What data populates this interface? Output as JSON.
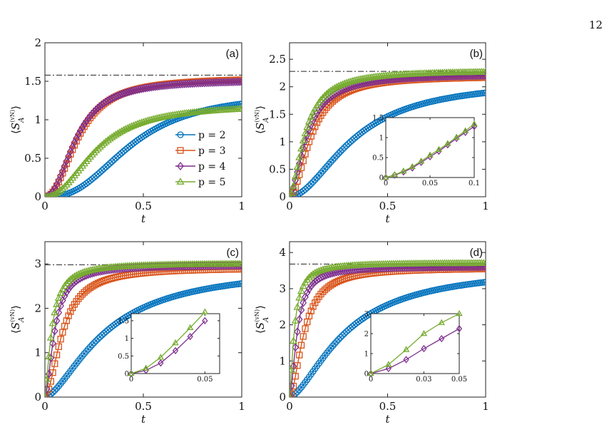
{
  "page": {
    "number": "12"
  },
  "colors": {
    "p2": "#0072BD",
    "p3": "#D95319",
    "p4": "#7E2F8E",
    "p5": "#77AC30",
    "plateau": "#222222"
  },
  "legend": {
    "placement": "right-inside-panel-a",
    "entries": [
      {
        "label": "p = 2",
        "marker": "circle",
        "color": "#0072BD"
      },
      {
        "label": "p = 3",
        "marker": "square",
        "color": "#D95319"
      },
      {
        "label": "p = 4",
        "marker": "diamond",
        "color": "#7E2F8E"
      },
      {
        "label": "p = 5",
        "marker": "triangle",
        "color": "#77AC30"
      }
    ]
  },
  "chart_data": [
    {
      "type": "line",
      "panel": "(a)",
      "xlabel": "t",
      "ylabel": "⟨S_A^(vN)⟩",
      "xlim": [
        0,
        1
      ],
      "ylim": [
        0,
        2
      ],
      "xticks": [
        "0",
        "0.5",
        "1"
      ],
      "yticks": [
        "0",
        "0.5",
        "1",
        "1.5",
        "2"
      ],
      "plateau": 1.58,
      "series": [
        {
          "name": "p = 2",
          "saturation": 1.35,
          "halftime": 0.44,
          "shape": 2.6
        },
        {
          "name": "p = 3",
          "saturation": 1.55,
          "halftime": 0.17,
          "shape": 2.2
        },
        {
          "name": "p = 4",
          "saturation": 1.52,
          "halftime": 0.16,
          "shape": 2.2
        },
        {
          "name": "p = 5",
          "saturation": 1.2,
          "halftime": 0.26,
          "shape": 2.2
        }
      ]
    },
    {
      "type": "line",
      "panel": "(b)",
      "xlabel": "t",
      "ylabel": "⟨S_A^(vN)⟩",
      "xlim": [
        0,
        1
      ],
      "ylim": [
        0,
        2.8
      ],
      "xticks": [
        "0",
        "0.5",
        "1"
      ],
      "yticks": [
        "0",
        "0.5",
        "1",
        "1.5",
        "2",
        "2.5"
      ],
      "plateau": 2.28,
      "series": [
        {
          "name": "p = 2",
          "saturation": 2.12,
          "halftime": 0.33,
          "shape": 1.9
        },
        {
          "name": "p = 3",
          "saturation": 2.2,
          "halftime": 0.11,
          "shape": 1.9
        },
        {
          "name": "p = 4",
          "saturation": 2.24,
          "halftime": 0.09,
          "shape": 1.7
        },
        {
          "name": "p = 5",
          "saturation": 2.3,
          "halftime": 0.08,
          "shape": 1.7
        }
      ],
      "inset": {
        "xlim": [
          0,
          0.1
        ],
        "ylim": [
          0,
          1.5
        ],
        "xticks": [
          "0",
          "0.05",
          "0.1"
        ],
        "yticks": [
          "0",
          "0.5",
          "1",
          "1.5"
        ],
        "series": [
          {
            "name": "p = 4",
            "x": [
              0,
              0.01,
              0.02,
              0.03,
              0.04,
              0.05,
              0.06,
              0.07,
              0.08,
              0.09,
              0.1
            ],
            "y": [
              0,
              0.06,
              0.14,
              0.24,
              0.38,
              0.52,
              0.66,
              0.82,
              0.98,
              1.13,
              1.28
            ]
          },
          {
            "name": "p = 5",
            "x": [
              0,
              0.01,
              0.02,
              0.03,
              0.04,
              0.05,
              0.06,
              0.07,
              0.08,
              0.09,
              0.1
            ],
            "y": [
              0,
              0.07,
              0.16,
              0.27,
              0.41,
              0.56,
              0.7,
              0.85,
              1.01,
              1.17,
              1.34
            ]
          }
        ]
      }
    },
    {
      "type": "line",
      "panel": "(c)",
      "xlabel": "t",
      "ylabel": "⟨S_A^(vN)⟩",
      "xlim": [
        0,
        1
      ],
      "ylim": [
        0,
        3.5
      ],
      "xticks": [
        "0",
        "0.5",
        "1"
      ],
      "yticks": [
        "0",
        "1",
        "2",
        "3"
      ],
      "plateau": 2.98,
      "series": [
        {
          "name": "p = 2",
          "saturation": 2.95,
          "halftime": 0.31,
          "shape": 1.6
        },
        {
          "name": "p = 3",
          "saturation": 2.92,
          "halftime": 0.09,
          "shape": 1.8
        },
        {
          "name": "p = 4",
          "saturation": 2.98,
          "halftime": 0.05,
          "shape": 1.7
        },
        {
          "name": "p = 5",
          "saturation": 3.02,
          "halftime": 0.035,
          "shape": 1.5
        }
      ],
      "inset": {
        "xlim": [
          0,
          0.06
        ],
        "ylim": [
          0,
          1.7
        ],
        "xticks": [
          "0",
          "0.05"
        ],
        "yticks": [
          "0",
          "0.5",
          "1",
          "1.5"
        ],
        "series": [
          {
            "name": "p = 4",
            "x": [
              0,
              0.01,
              0.02,
              0.03,
              0.04,
              0.05
            ],
            "y": [
              0,
              0.09,
              0.3,
              0.65,
              1.05,
              1.5
            ]
          },
          {
            "name": "p = 5",
            "x": [
              0,
              0.01,
              0.02,
              0.03,
              0.04,
              0.05
            ],
            "y": [
              0,
              0.15,
              0.46,
              0.87,
              1.3,
              1.75
            ]
          }
        ]
      }
    },
    {
      "type": "line",
      "panel": "(d)",
      "xlabel": "t",
      "ylabel": "⟨S_A^(vN)⟩",
      "xlim": [
        0,
        1
      ],
      "ylim": [
        0,
        4.3
      ],
      "xticks": [
        "0",
        "0.5",
        "1"
      ],
      "yticks": [
        "0",
        "1",
        "2",
        "3",
        "4"
      ],
      "plateau": 3.68,
      "series": [
        {
          "name": "p = 2",
          "saturation": 3.62,
          "halftime": 0.29,
          "shape": 1.6
        },
        {
          "name": "p = 3",
          "saturation": 3.58,
          "halftime": 0.075,
          "shape": 1.8
        },
        {
          "name": "p = 4",
          "saturation": 3.62,
          "halftime": 0.04,
          "shape": 1.7
        },
        {
          "name": "p = 5",
          "saturation": 3.72,
          "halftime": 0.025,
          "shape": 1.5
        }
      ],
      "inset": {
        "xlim": [
          0,
          0.05
        ],
        "ylim": [
          0,
          3
        ],
        "xticks": [
          "0",
          "0.03",
          "0.05"
        ],
        "yticks": [
          "0",
          "1",
          "2",
          "3"
        ],
        "series": [
          {
            "name": "p = 4",
            "x": [
              0,
              0.01,
              0.02,
              0.03,
              0.04,
              0.05
            ],
            "y": [
              0,
              0.25,
              0.7,
              1.25,
              1.75,
              2.25
            ]
          },
          {
            "name": "p = 5",
            "x": [
              0,
              0.01,
              0.02,
              0.03,
              0.04,
              0.05
            ],
            "y": [
              0,
              0.45,
              1.2,
              2.0,
              2.55,
              3.0
            ]
          }
        ]
      }
    }
  ]
}
